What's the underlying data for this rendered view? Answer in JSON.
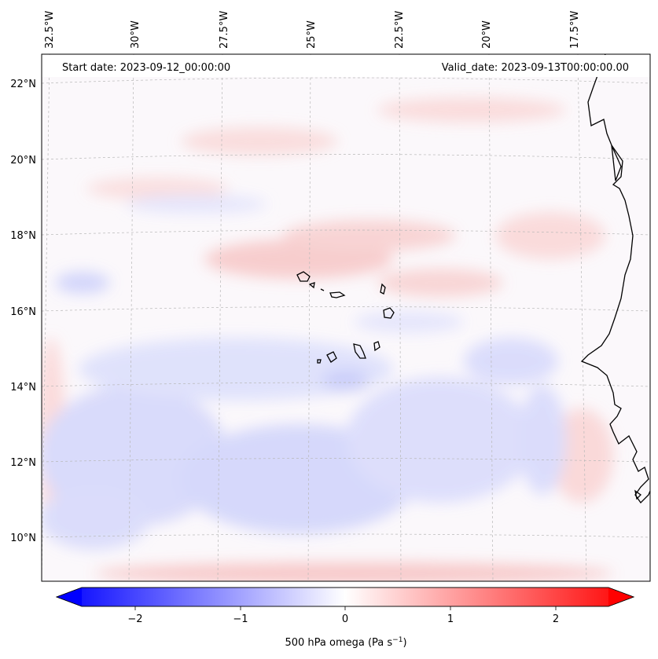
{
  "header": {
    "start_date": "Start date: 2023-09-12_00:00:00",
    "valid_date": "Valid_date: 2023-09-13T00:00:00.00"
  },
  "map": {
    "lon_labels": [
      "32.5°W",
      "30°W",
      "27.5°W",
      "25°W",
      "22.5°W",
      "20°W",
      "17.5°W"
    ],
    "lat_labels": [
      "22°N",
      "20°N",
      "18°N",
      "16°N",
      "14°N",
      "12°N",
      "10°N"
    ],
    "field": "500 hPa omega",
    "colormap": "bwr",
    "features": [
      "coastline-west-africa",
      "cape-verde-islands"
    ]
  },
  "colorbar": {
    "label_main": "500 hPa omega (Pa s",
    "label_exp": "−1",
    "label_close": ")",
    "ticks": [
      "−2",
      "−1",
      "0",
      "1",
      "2"
    ],
    "tick_values": [
      -2,
      -1,
      0,
      1,
      2
    ],
    "range": [
      -2.5,
      2.5
    ],
    "extend": "both",
    "low_color": "#0000ff",
    "mid_color": "#ffffff",
    "high_color": "#ff0000"
  }
}
